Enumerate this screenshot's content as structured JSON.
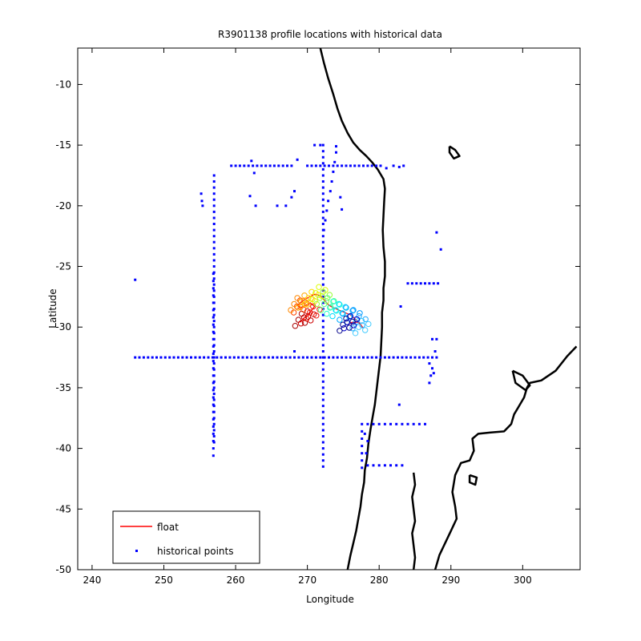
{
  "chart_data": {
    "type": "scatter",
    "title": "R3901138 profile locations with historical data",
    "xlabel": "Longitude",
    "ylabel": "Latitude",
    "xlim": [
      238,
      308
    ],
    "ylim": [
      -50,
      -7
    ],
    "xticks": [
      240,
      250,
      260,
      270,
      280,
      290,
      300
    ],
    "yticks": [
      -10,
      -15,
      -20,
      -25,
      -30,
      -35,
      -40,
      -45,
      -50
    ],
    "grid": false,
    "legend": {
      "placement": "bottom-left",
      "entries": [
        {
          "label": "float",
          "color": "#ff0000",
          "marker": "line"
        },
        {
          "label": "historical points",
          "color": "#0000ff",
          "marker": "dot"
        }
      ]
    },
    "series": [
      {
        "name": "float",
        "color": "#ff0000",
        "points_lonlat": [
          [
            269.0,
            -29.6
          ],
          [
            269.6,
            -29.2
          ],
          [
            270.2,
            -29.0
          ],
          [
            270.6,
            -28.6
          ],
          [
            271.0,
            -28.3
          ],
          [
            270.4,
            -28.0
          ],
          [
            269.8,
            -28.2
          ],
          [
            269.0,
            -28.4
          ],
          [
            268.6,
            -28.2
          ],
          [
            269.2,
            -27.9
          ],
          [
            270.0,
            -27.6
          ],
          [
            271.0,
            -27.3
          ],
          [
            271.8,
            -27.4
          ],
          [
            272.4,
            -27.8
          ],
          [
            273.0,
            -28.2
          ],
          [
            273.6,
            -28.4
          ],
          [
            274.4,
            -28.6
          ],
          [
            275.2,
            -28.8
          ],
          [
            276.0,
            -29.0
          ],
          [
            276.8,
            -29.4
          ],
          [
            277.4,
            -29.8
          ],
          [
            277.8,
            -30.1
          ],
          [
            277.2,
            -29.6
          ],
          [
            276.2,
            -29.6
          ],
          [
            275.6,
            -29.8
          ]
        ]
      },
      {
        "name": "historical points",
        "color": "#0000ff",
        "points_lonlat": [
          [
            246.0,
            -26.1
          ],
          [
            255.2,
            -19.0
          ],
          [
            255.3,
            -19.6
          ],
          [
            255.4,
            -20.0
          ],
          [
            259.4,
            -16.7
          ],
          [
            260.0,
            -16.7
          ],
          [
            260.6,
            -16.7
          ],
          [
            261.2,
            -16.7
          ],
          [
            261.8,
            -16.7
          ],
          [
            262.4,
            -16.7
          ],
          [
            263.0,
            -16.7
          ],
          [
            263.6,
            -16.7
          ],
          [
            264.2,
            -16.7
          ],
          [
            264.8,
            -16.7
          ],
          [
            265.4,
            -16.7
          ],
          [
            266.0,
            -16.7
          ],
          [
            266.6,
            -16.7
          ],
          [
            267.2,
            -16.7
          ],
          [
            267.8,
            -16.7
          ],
          [
            262.2,
            -16.3
          ],
          [
            262.6,
            -17.3
          ],
          [
            262.8,
            -20.0
          ],
          [
            262.0,
            -19.2
          ],
          [
            265.8,
            -20.0
          ],
          [
            267.0,
            -20.0
          ],
          [
            267.8,
            -19.3
          ],
          [
            268.2,
            -18.8
          ],
          [
            268.6,
            -16.2
          ],
          [
            271.0,
            -15.0
          ],
          [
            271.8,
            -15.0
          ],
          [
            274.0,
            -15.1
          ],
          [
            274.6,
            -19.3
          ],
          [
            274.8,
            -20.3
          ],
          [
            270.0,
            -16.7
          ],
          [
            270.6,
            -16.7
          ],
          [
            271.2,
            -16.7
          ],
          [
            271.8,
            -16.7
          ],
          [
            272.4,
            -16.7
          ],
          [
            273.0,
            -16.7
          ],
          [
            273.6,
            -16.7
          ],
          [
            274.2,
            -16.7
          ],
          [
            274.8,
            -16.7
          ],
          [
            275.4,
            -16.7
          ],
          [
            276.0,
            -16.7
          ],
          [
            276.6,
            -16.7
          ],
          [
            277.2,
            -16.7
          ],
          [
            277.8,
            -16.7
          ],
          [
            278.4,
            -16.7
          ],
          [
            279.0,
            -16.7
          ],
          [
            279.6,
            -16.7
          ],
          [
            280.2,
            -16.7
          ],
          [
            281.0,
            -16.9
          ],
          [
            282.0,
            -16.7
          ],
          [
            282.8,
            -16.8
          ],
          [
            283.4,
            -16.7
          ],
          [
            274.0,
            -15.6
          ],
          [
            273.8,
            -16.4
          ],
          [
            273.6,
            -17.2
          ],
          [
            273.4,
            -18.0
          ],
          [
            273.2,
            -18.8
          ],
          [
            272.9,
            -19.6
          ],
          [
            272.7,
            -20.4
          ],
          [
            272.5,
            -21.2
          ],
          [
            272.3,
            -22.0
          ],
          [
            288.0,
            -22.2
          ],
          [
            288.6,
            -23.6
          ],
          [
            283.0,
            -28.3
          ],
          [
            268.2,
            -32.0
          ],
          [
            282.8,
            -36.4
          ],
          [
            284.0,
            -26.4
          ],
          [
            284.6,
            -26.4
          ],
          [
            285.2,
            -26.4
          ],
          [
            285.8,
            -26.4
          ],
          [
            286.4,
            -26.4
          ],
          [
            287.0,
            -26.4
          ],
          [
            287.6,
            -26.4
          ],
          [
            288.2,
            -26.4
          ],
          [
            277.6,
            -38.0
          ],
          [
            278.4,
            -38.0
          ],
          [
            279.2,
            -38.0
          ],
          [
            280.0,
            -38.0
          ],
          [
            280.8,
            -38.0
          ],
          [
            281.6,
            -38.0
          ],
          [
            282.4,
            -38.0
          ],
          [
            283.2,
            -38.0
          ],
          [
            284.0,
            -38.0
          ],
          [
            284.8,
            -38.0
          ],
          [
            285.6,
            -38.0
          ],
          [
            286.4,
            -38.0
          ],
          [
            277.6,
            -38.6
          ],
          [
            277.6,
            -39.2
          ],
          [
            277.6,
            -39.8
          ],
          [
            277.6,
            -40.4
          ],
          [
            277.6,
            -41.0
          ],
          [
            277.6,
            -41.6
          ],
          [
            278.4,
            -41.4
          ],
          [
            279.2,
            -41.4
          ],
          [
            280.0,
            -41.4
          ],
          [
            280.8,
            -41.4
          ],
          [
            281.6,
            -41.4
          ],
          [
            282.4,
            -41.4
          ],
          [
            283.2,
            -41.4
          ],
          [
            278.4,
            -39.4
          ],
          [
            278.2,
            -40.4
          ],
          [
            278.0,
            -38.8
          ],
          [
            287.4,
            -31.0
          ],
          [
            288.0,
            -31.0
          ],
          [
            287.8,
            -32.0
          ],
          [
            287.0,
            -33.0
          ],
          [
            287.4,
            -33.4
          ],
          [
            287.2,
            -34.0
          ],
          [
            287.0,
            -34.6
          ],
          [
            287.6,
            -33.8
          ]
        ]
      }
    ],
    "float_color_track": [
      {
        "lon": 269.2,
        "lat": -29.4,
        "color": "#aa0000"
      },
      {
        "lon": 270.0,
        "lat": -29.2,
        "color": "#cc0000"
      },
      {
        "lon": 270.8,
        "lat": -28.8,
        "color": "#ee1100"
      },
      {
        "lon": 269.0,
        "lat": -28.3,
        "color": "#ff4400"
      },
      {
        "lon": 268.6,
        "lat": -28.1,
        "color": "#ff8800"
      },
      {
        "lon": 269.6,
        "lat": -27.9,
        "color": "#ffaa00"
      },
      {
        "lon": 270.6,
        "lat": -27.6,
        "color": "#ffdd00"
      },
      {
        "lon": 271.6,
        "lat": -27.2,
        "color": "#ddff00"
      },
      {
        "lon": 272.2,
        "lat": -27.6,
        "color": "#99ff33"
      },
      {
        "lon": 272.8,
        "lat": -28.1,
        "color": "#55ff88"
      },
      {
        "lon": 273.6,
        "lat": -28.4,
        "color": "#22ffcc"
      },
      {
        "lon": 274.4,
        "lat": -28.6,
        "color": "#00ddff"
      },
      {
        "lon": 275.4,
        "lat": -28.9,
        "color": "#00aaff"
      },
      {
        "lon": 276.4,
        "lat": -29.1,
        "color": "#0099ff"
      },
      {
        "lon": 277.2,
        "lat": -29.6,
        "color": "#22aaff"
      },
      {
        "lon": 277.6,
        "lat": -30.0,
        "color": "#44ccff"
      },
      {
        "lon": 276.0,
        "lat": -29.6,
        "color": "#0000cc"
      },
      {
        "lon": 275.4,
        "lat": -29.8,
        "color": "#000088"
      }
    ],
    "coastline_sa_west": [
      [
        271.8,
        -7.0
      ],
      [
        272.3,
        -8.2
      ],
      [
        272.9,
        -9.5
      ],
      [
        273.6,
        -10.8
      ],
      [
        274.2,
        -12.0
      ],
      [
        274.8,
        -13.0
      ],
      [
        275.6,
        -14.0
      ],
      [
        276.4,
        -14.8
      ],
      [
        277.3,
        -15.4
      ],
      [
        278.2,
        -15.9
      ],
      [
        279.0,
        -16.4
      ],
      [
        279.8,
        -17.0
      ],
      [
        280.6,
        -17.8
      ],
      [
        280.8,
        -18.6
      ],
      [
        280.7,
        -19.6
      ],
      [
        280.6,
        -20.8
      ],
      [
        280.5,
        -22.0
      ],
      [
        280.6,
        -23.4
      ],
      [
        280.8,
        -24.6
      ],
      [
        280.8,
        -25.8
      ],
      [
        280.6,
        -26.8
      ],
      [
        280.6,
        -27.8
      ],
      [
        280.4,
        -28.8
      ],
      [
        280.4,
        -30.0
      ],
      [
        280.3,
        -31.2
      ],
      [
        280.2,
        -32.4
      ],
      [
        280.0,
        -33.4
      ],
      [
        279.8,
        -34.4
      ],
      [
        279.6,
        -35.4
      ],
      [
        279.4,
        -36.4
      ],
      [
        279.1,
        -37.4
      ],
      [
        278.8,
        -38.4
      ],
      [
        278.5,
        -39.6
      ],
      [
        278.3,
        -40.8
      ],
      [
        278.0,
        -41.8
      ],
      [
        277.9,
        -42.8
      ],
      [
        277.6,
        -43.8
      ],
      [
        277.4,
        -44.8
      ],
      [
        277.1,
        -45.8
      ],
      [
        276.8,
        -46.8
      ],
      [
        276.4,
        -47.8
      ],
      [
        276.0,
        -48.8
      ],
      [
        275.6,
        -50.0
      ]
    ],
    "coastline_sa_east": [
      [
        287.8,
        -50.0
      ],
      [
        288.4,
        -48.8
      ],
      [
        289.2,
        -47.8
      ],
      [
        290.0,
        -46.8
      ],
      [
        290.8,
        -45.8
      ],
      [
        290.6,
        -44.8
      ],
      [
        290.2,
        -43.6
      ],
      [
        290.6,
        -42.2
      ],
      [
        291.4,
        -41.2
      ],
      [
        292.6,
        -41.0
      ],
      [
        293.2,
        -40.2
      ],
      [
        293.0,
        -39.2
      ],
      [
        293.8,
        -38.8
      ],
      [
        295.4,
        -38.7
      ],
      [
        297.4,
        -38.6
      ],
      [
        298.4,
        -38.0
      ],
      [
        298.8,
        -37.2
      ],
      [
        299.4,
        -36.6
      ],
      [
        300.2,
        -35.8
      ],
      [
        300.6,
        -35.0
      ],
      [
        301.0,
        -34.6
      ],
      [
        302.6,
        -34.4
      ],
      [
        304.6,
        -33.6
      ],
      [
        306.2,
        -32.4
      ],
      [
        307.5,
        -31.6
      ]
    ],
    "islands": [
      [
        [
          298.6,
          -33.6
        ],
        [
          300.0,
          -34.0
        ],
        [
          301.0,
          -34.8
        ],
        [
          300.4,
          -35.2
        ],
        [
          299.0,
          -34.6
        ],
        [
          298.6,
          -33.6
        ]
      ],
      [
        [
          289.8,
          -15.1
        ],
        [
          290.6,
          -15.4
        ],
        [
          291.2,
          -15.9
        ],
        [
          290.4,
          -16.1
        ],
        [
          289.8,
          -15.6
        ],
        [
          289.8,
          -15.1
        ]
      ],
      [
        [
          292.6,
          -42.2
        ],
        [
          293.6,
          -42.4
        ],
        [
          293.4,
          -43.0
        ],
        [
          292.6,
          -42.8
        ],
        [
          292.6,
          -42.2
        ]
      ]
    ],
    "coastline_chile_islands": [
      [
        284.8,
        -42.0
      ],
      [
        285.0,
        -43.0
      ],
      [
        284.6,
        -44.0
      ],
      [
        284.8,
        -45.0
      ],
      [
        285.0,
        -46.0
      ],
      [
        284.6,
        -47.0
      ],
      [
        284.8,
        -48.0
      ],
      [
        285.0,
        -49.0
      ],
      [
        284.8,
        -50.0
      ]
    ]
  }
}
